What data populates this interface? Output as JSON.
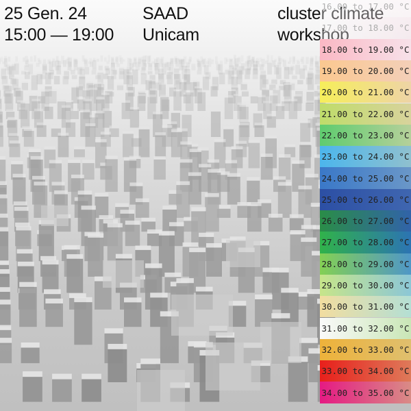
{
  "header": {
    "date": "25 Gen. 24",
    "time": "15:00 — 19:00",
    "org_line1": "SAAD",
    "org_line2": "Unicam",
    "event_line1": "cluster climate",
    "event_line2": "workshop"
  },
  "legend": [
    {
      "label": "16.00 to 17.00 °C",
      "color_left": "#ffffff",
      "color_right": "#fbeef3"
    },
    {
      "label": "17.00 to 18.00 °C",
      "color_left": "#ffffff",
      "color_right": "#f8dbe6"
    },
    {
      "label": "18.00 to 19.00 °C",
      "color_left": "#fbb8c4",
      "color_right": "#f7e1e9"
    },
    {
      "label": "19.00 to 20.00 °C",
      "color_left": "#fbc890",
      "color_right": "#f3cfb8"
    },
    {
      "label": "20.00 to 21.00 °C",
      "color_left": "#f6ee5a",
      "color_right": "#eed4a6"
    },
    {
      "label": "21.00 to 22.00 °C",
      "color_left": "#bfdc6a",
      "color_right": "#d8d39c"
    },
    {
      "label": "22.00 to 23.00 °C",
      "color_left": "#5fcc6f",
      "color_right": "#b5d09a"
    },
    {
      "label": "23.00 to 24.00 °C",
      "color_left": "#4cb6ec",
      "color_right": "#8fc0cf"
    },
    {
      "label": "24.00 to 25.00 °C",
      "color_left": "#3a78c8",
      "color_right": "#6a97c8"
    },
    {
      "label": "25.00 to 26.00 °C",
      "color_left": "#2c4fa4",
      "color_right": "#3f66b0"
    },
    {
      "label": "26.00 to 27.00 °C",
      "color_left": "#2a8d47",
      "color_right": "#3163a9"
    },
    {
      "label": "27.00 to 28.00 °C",
      "color_left": "#30b24a",
      "color_right": "#2c74b3"
    },
    {
      "label": "28.00 to 29.00 °C",
      "color_left": "#84d054",
      "color_right": "#4f97c7"
    },
    {
      "label": "29.00 to 30.00 °C",
      "color_left": "#c7e58a",
      "color_right": "#8cc7d6"
    },
    {
      "label": "30.00 to 31.00 °C",
      "color_left": "#f2dda0",
      "color_right": "#b4dfd4"
    },
    {
      "label": "31.00 to 32.00 °C",
      "color_left": "#fafafa",
      "color_right": "#c9e6b6"
    },
    {
      "label": "32.00 to 33.00 °C",
      "color_left": "#eeb23a",
      "color_right": "#dfbf6e"
    },
    {
      "label": "33.00 to 34.00 °C",
      "color_left": "#e81f1b",
      "color_right": "#de7a5a"
    },
    {
      "label": "34.00 to 35.00 °C",
      "color_left": "#e51a83",
      "color_right": "#d98c86"
    }
  ]
}
